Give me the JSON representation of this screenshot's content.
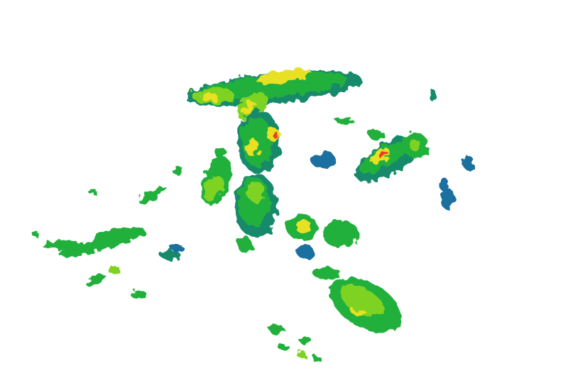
{
  "map": {
    "kind": "precipitation-radar-reflectivity",
    "background": "#ffffff",
    "palette": {
      "light": "#1f6fa0",
      "light_moderate": "#138a6a",
      "moderate": "#22b03c",
      "moderate_high": "#7ed321",
      "high": "#e8e020",
      "very_high": "#f0a020",
      "intense": "#e84020"
    }
  }
}
